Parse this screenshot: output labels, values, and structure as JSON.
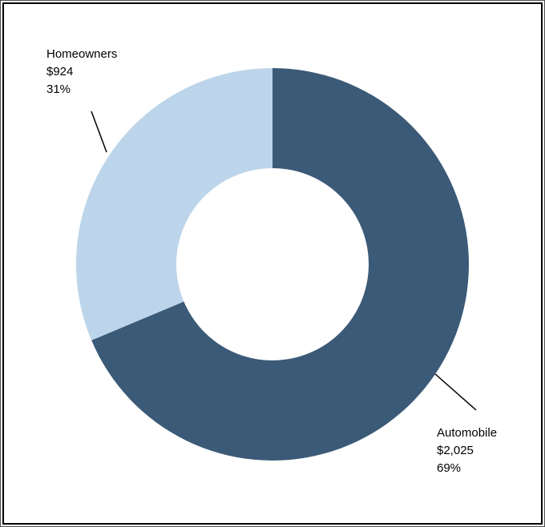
{
  "chart_data": {
    "type": "donut",
    "title": "",
    "slices": [
      {
        "label": "Automobile",
        "value": 2025,
        "value_label": "$2,025",
        "pct": 69,
        "pct_label": "69%",
        "color": "#3B5A77"
      },
      {
        "label": "Homeowners",
        "value": 924,
        "value_label": "$924",
        "pct": 31,
        "pct_label": "31%",
        "color": "#BCD5EA"
      }
    ],
    "start_angle_deg": 0,
    "direction": "clockwise",
    "inner_radius_ratio": 0.49,
    "legend_position": "none",
    "label_style": "callout-with-leader-line",
    "background": "#FFFFFF",
    "frame_color": "#000000",
    "leader_line_color": "#000000"
  }
}
